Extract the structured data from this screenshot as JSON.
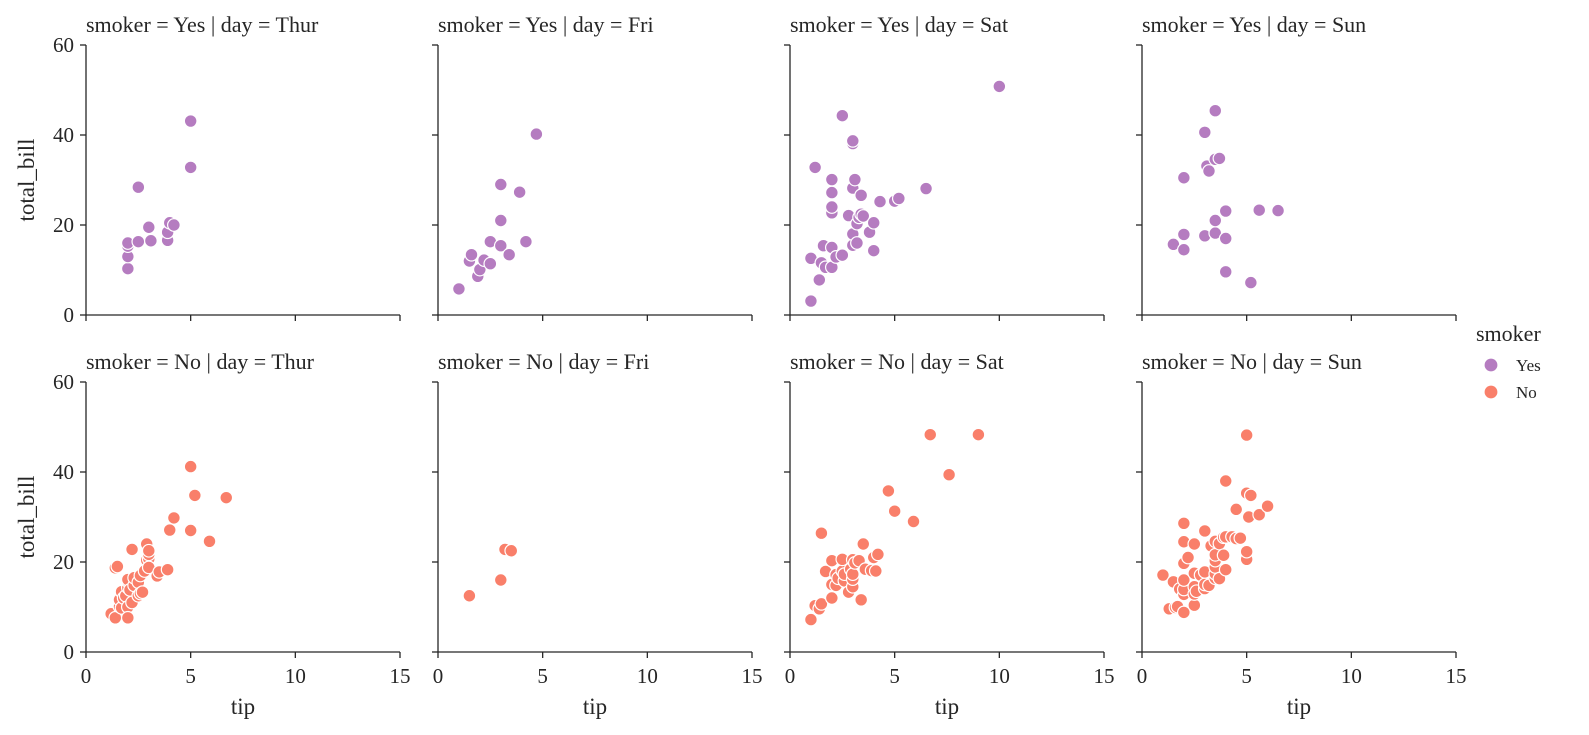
{
  "chart_data": {
    "type": "scatter",
    "facet_row": "smoker",
    "facet_col": "day",
    "row_values": [
      "Yes",
      "No"
    ],
    "col_values": [
      "Thur",
      "Fri",
      "Sat",
      "Sun"
    ],
    "xlabel": "tip",
    "ylabel": "total_bill",
    "xlim": [
      0,
      15
    ],
    "ylim": [
      0,
      60
    ],
    "xticks": [
      0,
      5,
      10,
      15
    ],
    "yticks": [
      0,
      20,
      40,
      60
    ],
    "grid": false,
    "legend": {
      "title": "smoker",
      "placement": "right",
      "entries": [
        {
          "label": "Yes",
          "color": "#b57cc0"
        },
        {
          "label": "No",
          "color": "#f97f6a"
        }
      ]
    },
    "panels": [
      {
        "title": "smoker = Yes | day = Thur",
        "smoker": "Yes",
        "day": "Thur",
        "points": [
          [
            2.0,
            10.3
          ],
          [
            2.0,
            13.0
          ],
          [
            2.0,
            15.3
          ],
          [
            2.0,
            16.0
          ],
          [
            2.5,
            16.3
          ],
          [
            2.5,
            28.4
          ],
          [
            3.0,
            19.5
          ],
          [
            3.1,
            16.5
          ],
          [
            3.9,
            16.6
          ],
          [
            3.9,
            18.4
          ],
          [
            4.0,
            20.5
          ],
          [
            4.2,
            20.0
          ],
          [
            5.0,
            32.8
          ],
          [
            5.0,
            43.1
          ]
        ]
      },
      {
        "title": "smoker = Yes | day = Fri",
        "smoker": "Yes",
        "day": "Fri",
        "points": [
          [
            1.0,
            5.8
          ],
          [
            1.5,
            12.0
          ],
          [
            1.6,
            13.4
          ],
          [
            1.9,
            8.6
          ],
          [
            2.0,
            10.1
          ],
          [
            2.2,
            12.2
          ],
          [
            2.5,
            16.3
          ],
          [
            2.5,
            11.4
          ],
          [
            3.0,
            21.0
          ],
          [
            3.0,
            15.4
          ],
          [
            3.0,
            29.0
          ],
          [
            3.4,
            13.4
          ],
          [
            3.9,
            27.3
          ],
          [
            4.2,
            16.3
          ],
          [
            4.7,
            40.2
          ]
        ]
      },
      {
        "title": "smoker = Yes | day = Sat",
        "smoker": "Yes",
        "day": "Sat",
        "points": [
          [
            1.0,
            3.1
          ],
          [
            1.0,
            12.6
          ],
          [
            1.2,
            32.8
          ],
          [
            1.4,
            7.8
          ],
          [
            1.5,
            11.6
          ],
          [
            1.6,
            15.4
          ],
          [
            1.7,
            10.6
          ],
          [
            2.0,
            10.6
          ],
          [
            2.0,
            15.0
          ],
          [
            2.0,
            22.7
          ],
          [
            2.0,
            24.0
          ],
          [
            2.0,
            27.2
          ],
          [
            2.0,
            30.1
          ],
          [
            2.2,
            12.9
          ],
          [
            2.5,
            13.3
          ],
          [
            2.5,
            44.3
          ],
          [
            2.8,
            22.1
          ],
          [
            3.0,
            15.5
          ],
          [
            3.0,
            18.0
          ],
          [
            3.0,
            28.2
          ],
          [
            3.0,
            38.1
          ],
          [
            3.0,
            38.7
          ],
          [
            3.1,
            30.1
          ],
          [
            3.2,
            16.0
          ],
          [
            3.2,
            20.3
          ],
          [
            3.3,
            21.7
          ],
          [
            3.4,
            26.6
          ],
          [
            3.4,
            22.4
          ],
          [
            3.5,
            22.0
          ],
          [
            3.8,
            18.4
          ],
          [
            4.0,
            14.3
          ],
          [
            4.0,
            20.5
          ],
          [
            4.3,
            25.2
          ],
          [
            5.0,
            25.3
          ],
          [
            5.2,
            25.9
          ],
          [
            6.5,
            28.1
          ],
          [
            10.0,
            50.8
          ]
        ]
      },
      {
        "title": "smoker = Yes | day = Sun",
        "smoker": "Yes",
        "day": "Sun",
        "points": [
          [
            1.5,
            15.7
          ],
          [
            2.0,
            14.5
          ],
          [
            2.0,
            17.9
          ],
          [
            2.0,
            30.5
          ],
          [
            3.0,
            17.6
          ],
          [
            3.0,
            40.6
          ],
          [
            3.1,
            33.1
          ],
          [
            3.2,
            32.0
          ],
          [
            3.5,
            34.6
          ],
          [
            3.5,
            45.4
          ],
          [
            3.5,
            18.2
          ],
          [
            3.5,
            21.0
          ],
          [
            3.7,
            34.8
          ],
          [
            4.0,
            17.0
          ],
          [
            4.0,
            23.1
          ],
          [
            4.0,
            9.6
          ],
          [
            5.2,
            7.2
          ],
          [
            5.6,
            23.3
          ],
          [
            6.5,
            23.2
          ]
        ]
      },
      {
        "title": "smoker = No | day = Thur",
        "smoker": "No",
        "day": "Thur",
        "points": [
          [
            1.2,
            8.5
          ],
          [
            1.4,
            7.6
          ],
          [
            1.4,
            18.7
          ],
          [
            1.5,
            19.0
          ],
          [
            1.6,
            10.1
          ],
          [
            1.6,
            11.6
          ],
          [
            1.7,
            13.4
          ],
          [
            1.7,
            9.8
          ],
          [
            1.8,
            12.0
          ],
          [
            1.9,
            12.5
          ],
          [
            2.0,
            10.0
          ],
          [
            2.0,
            7.6
          ],
          [
            2.0,
            14.3
          ],
          [
            2.0,
            15.7
          ],
          [
            2.0,
            16.1
          ],
          [
            2.1,
            13.8
          ],
          [
            2.2,
            11.0
          ],
          [
            2.2,
            22.8
          ],
          [
            2.3,
            14.8
          ],
          [
            2.3,
            16.5
          ],
          [
            2.5,
            12.5
          ],
          [
            2.5,
            15.5
          ],
          [
            2.6,
            13.0
          ],
          [
            2.6,
            17.0
          ],
          [
            2.7,
            13.3
          ],
          [
            2.8,
            18.0
          ],
          [
            2.9,
            20.4
          ],
          [
            2.9,
            24.0
          ],
          [
            3.0,
            20.7
          ],
          [
            3.0,
            18.8
          ],
          [
            3.0,
            21.7
          ],
          [
            3.0,
            22.5
          ],
          [
            3.4,
            16.9
          ],
          [
            3.5,
            17.8
          ],
          [
            3.9,
            18.3
          ],
          [
            4.0,
            27.1
          ],
          [
            4.2,
            29.8
          ],
          [
            5.0,
            27.0
          ],
          [
            5.0,
            41.2
          ],
          [
            5.2,
            34.8
          ],
          [
            5.9,
            24.6
          ],
          [
            6.7,
            34.3
          ]
        ]
      },
      {
        "title": "smoker = No | day = Fri",
        "smoker": "No",
        "day": "Fri",
        "points": [
          [
            1.5,
            12.5
          ],
          [
            3.0,
            16.0
          ],
          [
            3.2,
            22.8
          ],
          [
            3.5,
            22.5
          ]
        ]
      },
      {
        "title": "smoker = No | day = Sat",
        "smoker": "No",
        "day": "Sat",
        "points": [
          [
            1.0,
            7.2
          ],
          [
            1.2,
            10.3
          ],
          [
            1.4,
            9.6
          ],
          [
            1.5,
            10.7
          ],
          [
            1.5,
            26.4
          ],
          [
            1.7,
            17.9
          ],
          [
            2.0,
            12.0
          ],
          [
            2.0,
            20.3
          ],
          [
            2.0,
            15.0
          ],
          [
            2.2,
            14.8
          ],
          [
            2.2,
            17.2
          ],
          [
            2.3,
            16.4
          ],
          [
            2.5,
            18.0
          ],
          [
            2.5,
            20.6
          ],
          [
            2.6,
            15.8
          ],
          [
            2.6,
            17.3
          ],
          [
            2.8,
            13.3
          ],
          [
            2.9,
            18.4
          ],
          [
            3.0,
            14.5
          ],
          [
            3.0,
            16.2
          ],
          [
            3.0,
            17.3
          ],
          [
            3.0,
            20.5
          ],
          [
            3.1,
            19.8
          ],
          [
            3.3,
            20.3
          ],
          [
            3.4,
            11.6
          ],
          [
            3.5,
            24.0
          ],
          [
            3.6,
            18.4
          ],
          [
            3.9,
            18.1
          ],
          [
            4.0,
            21.0
          ],
          [
            4.1,
            18.0
          ],
          [
            4.2,
            21.7
          ],
          [
            4.7,
            35.8
          ],
          [
            5.0,
            31.3
          ],
          [
            5.9,
            29.0
          ],
          [
            6.7,
            48.3
          ],
          [
            7.6,
            39.4
          ],
          [
            9.0,
            48.3
          ]
        ]
      },
      {
        "title": "smoker = No | day = Sun",
        "smoker": "No",
        "day": "Sun",
        "points": [
          [
            1.0,
            17.1
          ],
          [
            1.3,
            9.6
          ],
          [
            1.5,
            15.6
          ],
          [
            1.6,
            9.9
          ],
          [
            1.7,
            10.1
          ],
          [
            1.8,
            14.0
          ],
          [
            2.0,
            8.8
          ],
          [
            2.0,
            12.8
          ],
          [
            2.0,
            13.9
          ],
          [
            2.0,
            16.0
          ],
          [
            2.0,
            19.7
          ],
          [
            2.0,
            24.5
          ],
          [
            2.0,
            28.6
          ],
          [
            2.2,
            21.0
          ],
          [
            2.5,
            10.4
          ],
          [
            2.5,
            12.9
          ],
          [
            2.5,
            14.5
          ],
          [
            2.5,
            17.5
          ],
          [
            2.5,
            24.0
          ],
          [
            2.6,
            13.5
          ],
          [
            2.8,
            17.1
          ],
          [
            3.0,
            14.1
          ],
          [
            3.0,
            15.0
          ],
          [
            3.0,
            17.8
          ],
          [
            3.0,
            26.9
          ],
          [
            3.2,
            14.8
          ],
          [
            3.3,
            23.6
          ],
          [
            3.5,
            16.4
          ],
          [
            3.5,
            17.4
          ],
          [
            3.5,
            18.9
          ],
          [
            3.5,
            20.3
          ],
          [
            3.5,
            21.6
          ],
          [
            3.5,
            24.6
          ],
          [
            3.7,
            16.3
          ],
          [
            3.7,
            24.1
          ],
          [
            3.9,
            21.5
          ],
          [
            3.9,
            25.5
          ],
          [
            4.0,
            18.3
          ],
          [
            4.0,
            25.6
          ],
          [
            4.0,
            38.0
          ],
          [
            4.3,
            25.6
          ],
          [
            4.5,
            25.2
          ],
          [
            4.5,
            31.7
          ],
          [
            4.7,
            25.3
          ],
          [
            5.0,
            20.6
          ],
          [
            5.0,
            22.3
          ],
          [
            5.0,
            35.3
          ],
          [
            5.0,
            48.2
          ],
          [
            5.1,
            30.0
          ],
          [
            5.2,
            34.8
          ],
          [
            5.6,
            30.5
          ],
          [
            6.0,
            32.4
          ]
        ]
      }
    ]
  }
}
